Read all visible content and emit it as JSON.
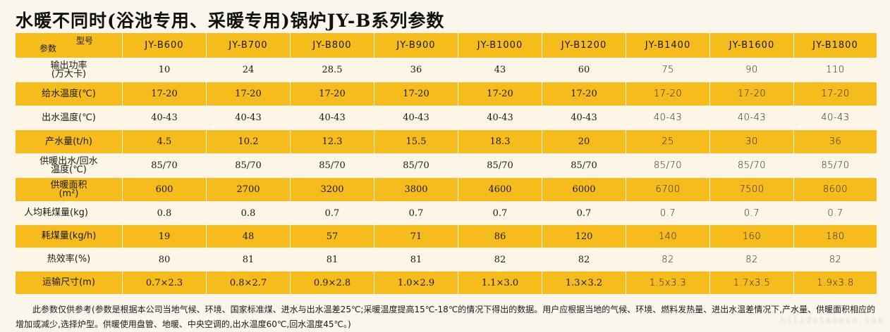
{
  "title": "水暖不同时(浴池专用、采暖专用)锅炉JY-B系列参数",
  "header": {
    "model_label": "型号",
    "param_label": "参数"
  },
  "models": [
    "JY-B600",
    "JY-B700",
    "JY-B800",
    "JY-B900",
    "JY-B1000",
    "JY-B1200",
    "JY-B1400",
    "JY-B1600",
    "JY-B1800"
  ],
  "rows": [
    {
      "label": "输出功率\n(万大卡)",
      "values": [
        "10",
        "24",
        "28.5",
        "36",
        "43",
        "60",
        "75",
        "90",
        "110"
      ]
    },
    {
      "label": "给水温度(℃)",
      "values": [
        "17-20",
        "17-20",
        "17-20",
        "17-20",
        "17-20",
        "17-20",
        "17-20",
        "17-20",
        "17-20"
      ]
    },
    {
      "label": "出水温度(℃)",
      "values": [
        "40-43",
        "40-43",
        "40-43",
        "40-43",
        "40-43",
        "40-43",
        "40-43",
        "40-43",
        "40-43"
      ]
    },
    {
      "label": "产水量(t/h)",
      "values": [
        "4.5",
        "10.2",
        "12.3",
        "15.5",
        "18.3",
        "20",
        "25",
        "30",
        "36"
      ]
    },
    {
      "label": "供暖出水/回水\n温度(℃)",
      "values": [
        "85/70",
        "85/70",
        "85/70",
        "85/70",
        "85/70",
        "85/70",
        "85/70",
        "85/70",
        "85/70"
      ]
    },
    {
      "label": "供暖面积\n(m²)",
      "values": [
        "600",
        "2700",
        "3200",
        "3800",
        "4600",
        "6000",
        "6700",
        "7500",
        "8600"
      ]
    },
    {
      "label": "人均耗煤量(kg)",
      "values": [
        "0.8",
        "0.8",
        "0.7",
        "0.7",
        "0.7",
        "0.7",
        "0.7",
        "0.7",
        "0.7"
      ]
    },
    {
      "label": "耗煤量(kg/h)",
      "values": [
        "19",
        "48",
        "57",
        "71",
        "86",
        "120",
        "140",
        "160",
        "180"
      ]
    },
    {
      "label": "热效率(%)",
      "values": [
        "80",
        "81",
        "81",
        "81",
        "82",
        "82",
        "82",
        "82",
        "82"
      ]
    },
    {
      "label": "运输尺寸(m)",
      "values": [
        "0.7×2.3",
        "0.8×2.7",
        "0.9×2.8",
        "1.0×2.9",
        "1.1×3.0",
        "1.3×3.2",
        "1.5x3.3",
        "1.7x3.5",
        "1.9x3.8"
      ]
    }
  ],
  "footnote": "此参数仅供参考(参数是根据本公司当地气候、环境、国家标准煤、进水与出水温差25℃;采暖温度提高15℃-18℃的情况下得出的数据。用户应根据当地的气候、环境、燃料发热量、进出水温差情况下,产水量、供暖面积相应的增加或减少,选择炉型。供暖使用盘管、地暖、中央空调的,出水温度60℃,回水温度45℃。)",
  "watermark": "hilidatabase.com"
}
